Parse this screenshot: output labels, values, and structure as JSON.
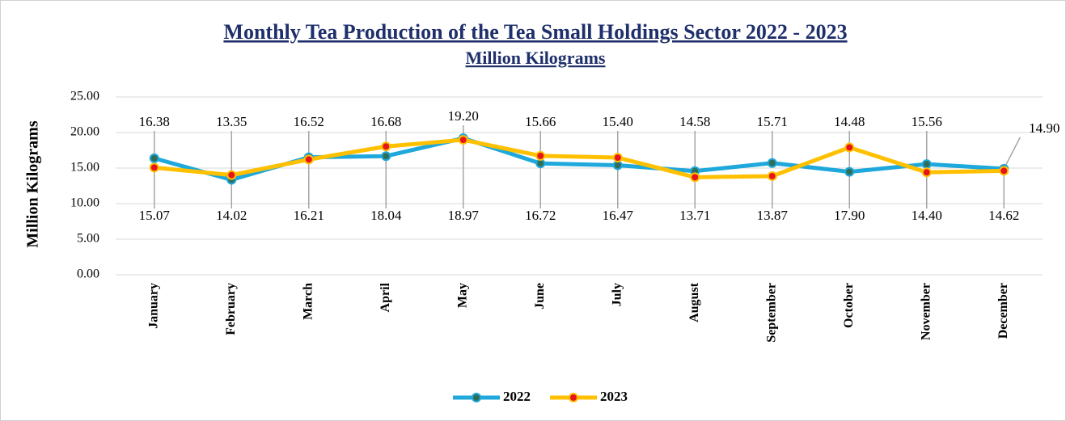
{
  "chart_data": {
    "type": "line",
    "title": "Monthly Tea Production of the Tea Small Holdings Sector 2022 - 2023",
    "subtitle": "Million  Kilograms",
    "y_label": "Million  Kilograms",
    "categories": [
      "January",
      "February",
      "March",
      "April",
      "May",
      "June",
      "July",
      "August",
      "September",
      "October",
      "November",
      "December"
    ],
    "series": [
      {
        "name": "2022",
        "color": "#1ea8dc",
        "marker_color": "#2f6f5a",
        "values": [
          16.38,
          13.35,
          16.52,
          16.68,
          19.2,
          15.66,
          15.4,
          14.58,
          15.71,
          14.48,
          15.56,
          14.9
        ],
        "value_labels": [
          "16.38",
          "13.35",
          "16.52",
          "16.68",
          "19.20",
          "15.66",
          "15.40",
          "14.58",
          "15.71",
          "14.48",
          "15.56",
          "14.90"
        ]
      },
      {
        "name": "2023",
        "color": "#ffc000",
        "marker_color": "#e8141c",
        "values": [
          15.07,
          14.02,
          16.21,
          18.04,
          18.97,
          16.72,
          16.47,
          13.71,
          13.87,
          17.9,
          14.4,
          14.62
        ],
        "value_labels": [
          "15.07",
          "14.02",
          "16.21",
          "18.04",
          "18.97",
          "16.72",
          "16.47",
          "13.71",
          "13.87",
          "17.90",
          "14.40",
          "14.62"
        ]
      }
    ],
    "ylim": [
      0,
      25
    ],
    "yticks": [
      {
        "value": 0,
        "label": "0.00"
      },
      {
        "value": 5,
        "label": "5.00"
      },
      {
        "value": 10,
        "label": "10.00"
      },
      {
        "value": 15,
        "label": "15.00"
      },
      {
        "value": 20,
        "label": "20.00"
      },
      {
        "value": 25,
        "label": "25.00"
      }
    ],
    "grid": true,
    "legend": "bottom"
  }
}
